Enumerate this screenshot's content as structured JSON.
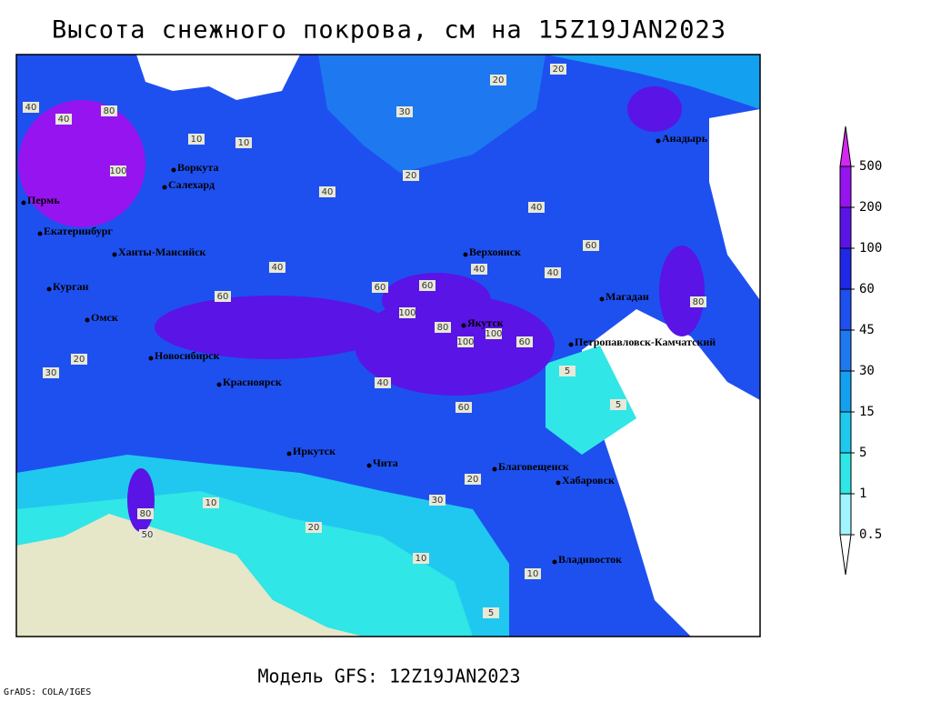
{
  "title": "Высота снежного покрова, см на 15Z19JAN2023",
  "subtitle": "Модель GFS: 12Z19JAN2023",
  "credit": "GrADS: COLA/IGES",
  "colorbar": {
    "levels": [
      0.5,
      1,
      5,
      15,
      30,
      45,
      60,
      100,
      200,
      500
    ],
    "colors": [
      "#ffffff",
      "#a0f5ff",
      "#30e6e6",
      "#20c8f0",
      "#14a0f0",
      "#1e78f0",
      "#1e50f0",
      "#1e28e6",
      "#5a14e6",
      "#9614f0",
      "#d228f0"
    ]
  },
  "cities": [
    "Анадырь",
    "Воркута",
    "Салехард",
    "Пермь",
    "Екатеринбург",
    "Ханты-Мансийск",
    "Курган",
    "Омск",
    "Новосибирск",
    "Красноярск",
    "Иркутск",
    "Чита",
    "Верхоянск",
    "Якутск",
    "Магадан",
    "Петропавловск-Камчатский",
    "Благовещенск",
    "Хабаровск",
    "Владивосток"
  ],
  "contour_labels": [
    20,
    20,
    30,
    40,
    40,
    100,
    80,
    10,
    10,
    20,
    40,
    40,
    60,
    40,
    40,
    60,
    60,
    100,
    100,
    100,
    80,
    60,
    80,
    60,
    40,
    5,
    5,
    30,
    20,
    40,
    60,
    20,
    10,
    20,
    10,
    5,
    10,
    80,
    30,
    50
  ]
}
